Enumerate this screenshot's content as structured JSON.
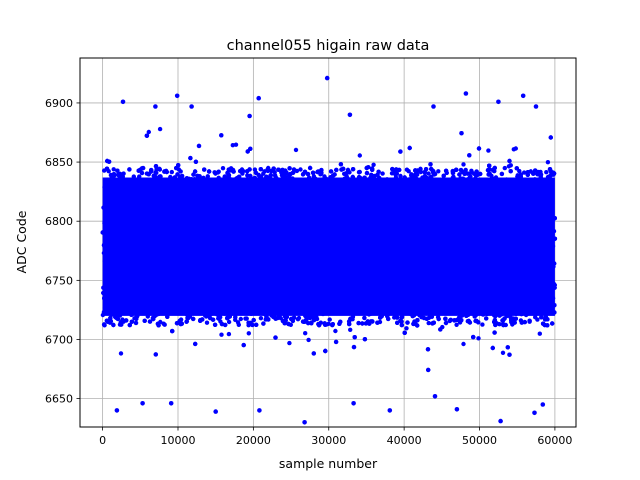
{
  "chart_data": {
    "type": "scatter",
    "title": "channel055 higain raw data",
    "xlabel": "sample number",
    "ylabel": "ADC Code",
    "xlim": [
      -3000,
      62800
    ],
    "ylim": [
      6626,
      6938
    ],
    "x_ticks": [
      0,
      10000,
      20000,
      30000,
      40000,
      50000,
      60000
    ],
    "x_tick_labels": [
      "0",
      "10000",
      "20000",
      "30000",
      "40000",
      "50000",
      "60000"
    ],
    "y_ticks": [
      6650,
      6700,
      6750,
      6800,
      6850,
      6900
    ],
    "y_tick_labels": [
      "6650",
      "6700",
      "6750",
      "6800",
      "6850",
      "6900"
    ],
    "grid": true,
    "marker_color": "#0000ff",
    "series": [
      {
        "n_samples": 60000,
        "x_range": [
          0,
          60000
        ],
        "dense_band": [
          6712,
          6845
        ],
        "typical_envelope": [
          6665,
          6880
        ],
        "outliers": [
          {
            "x": 29800,
            "y": 6921
          },
          {
            "x": 48200,
            "y": 6908
          },
          {
            "x": 55800,
            "y": 6906
          },
          {
            "x": 9900,
            "y": 6906
          },
          {
            "x": 20700,
            "y": 6904
          },
          {
            "x": 2700,
            "y": 6901
          },
          {
            "x": 52500,
            "y": 6901
          },
          {
            "x": 11800,
            "y": 6897
          },
          {
            "x": 43900,
            "y": 6897
          },
          {
            "x": 57500,
            "y": 6897
          },
          {
            "x": 7000,
            "y": 6897
          },
          {
            "x": 19500,
            "y": 6889
          },
          {
            "x": 32800,
            "y": 6890
          },
          {
            "x": 26800,
            "y": 6630
          },
          {
            "x": 52800,
            "y": 6631
          },
          {
            "x": 57300,
            "y": 6638
          },
          {
            "x": 15000,
            "y": 6639
          },
          {
            "x": 1900,
            "y": 6640
          },
          {
            "x": 20800,
            "y": 6640
          },
          {
            "x": 38100,
            "y": 6640
          },
          {
            "x": 47000,
            "y": 6641
          },
          {
            "x": 58400,
            "y": 6645
          },
          {
            "x": 5300,
            "y": 6646
          },
          {
            "x": 9100,
            "y": 6646
          },
          {
            "x": 33300,
            "y": 6646
          },
          {
            "x": 44100,
            "y": 6652
          }
        ]
      }
    ]
  }
}
